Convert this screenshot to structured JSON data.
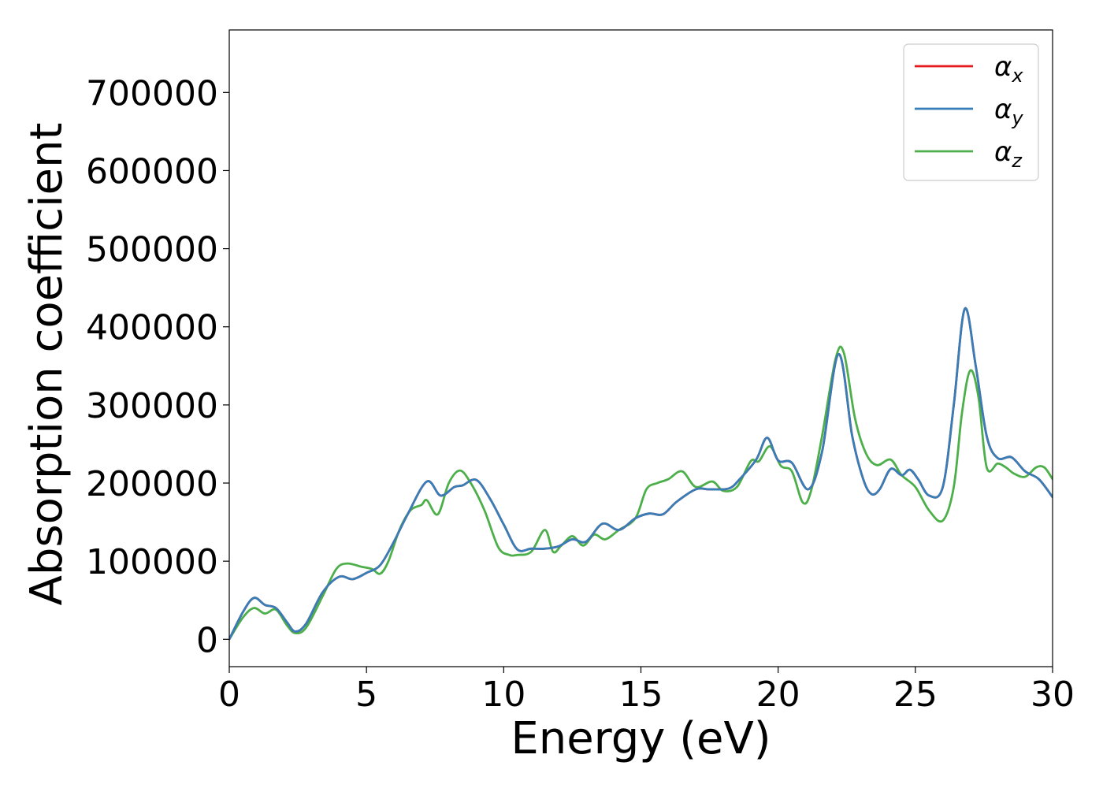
{
  "chart_data": {
    "type": "line",
    "title": "",
    "xlabel": "Energy (eV)",
    "ylabel": "Absorption coefficient",
    "xlim": [
      0,
      30
    ],
    "ylim": [
      -35000,
      780000
    ],
    "xticks": [
      0,
      5,
      10,
      15,
      20,
      25,
      30
    ],
    "yticks": [
      0,
      100000,
      200000,
      300000,
      400000,
      500000,
      600000,
      700000
    ],
    "grid": false,
    "legend_position": "top-right",
    "series": [
      {
        "name": "αx",
        "legend_base": "α",
        "legend_sub": "x",
        "color": "#e41a1c",
        "x": [
          0,
          0.5,
          0.9,
          1.3,
          1.7,
          2.1,
          2.4,
          2.8,
          3.4,
          4.0,
          4.5,
          5.0,
          5.5,
          6.0,
          6.5,
          7.2,
          7.7,
          8.2,
          8.5,
          9.0,
          9.5,
          10.0,
          10.5,
          11.0,
          11.5,
          12.0,
          12.5,
          13.0,
          13.6,
          14.2,
          14.8,
          15.3,
          15.8,
          16.3,
          17.0,
          17.5,
          18.2,
          18.6,
          19.2,
          19.6,
          20.0,
          20.5,
          21.1,
          21.6,
          22.2,
          22.7,
          23.1,
          23.4,
          23.7,
          24.1,
          24.5,
          24.8,
          25.1,
          25.5,
          26.0,
          26.4,
          26.8,
          27.2,
          27.6,
          28.0,
          28.5,
          29.0,
          29.5,
          30.0
        ],
        "y": [
          0,
          35000,
          53000,
          44000,
          40000,
          22000,
          10000,
          20000,
          60000,
          80000,
          77000,
          85000,
          95000,
          125000,
          160000,
          202000,
          184000,
          195000,
          197000,
          204000,
          180000,
          147000,
          115000,
          116000,
          116000,
          119000,
          128000,
          125000,
          148000,
          140000,
          155000,
          161000,
          160000,
          176000,
          192000,
          192000,
          193000,
          205000,
          230000,
          258000,
          229000,
          226000,
          192000,
          240000,
          365000,
          260000,
          205000,
          186000,
          192000,
          218000,
          210000,
          217000,
          205000,
          184000,
          195000,
          300000,
          423000,
          350000,
          260000,
          232000,
          233000,
          215000,
          205000,
          182000
        ]
      },
      {
        "name": "αy",
        "legend_base": "α",
        "legend_sub": "y",
        "color": "#377eb8",
        "x": [
          0,
          0.5,
          0.9,
          1.3,
          1.7,
          2.1,
          2.4,
          2.8,
          3.4,
          4.0,
          4.5,
          5.0,
          5.5,
          6.0,
          6.5,
          7.2,
          7.7,
          8.2,
          8.5,
          9.0,
          9.5,
          10.0,
          10.5,
          11.0,
          11.5,
          12.0,
          12.5,
          13.0,
          13.6,
          14.2,
          14.8,
          15.3,
          15.8,
          16.3,
          17.0,
          17.5,
          18.2,
          18.6,
          19.2,
          19.6,
          20.0,
          20.5,
          21.1,
          21.6,
          22.2,
          22.7,
          23.1,
          23.4,
          23.7,
          24.1,
          24.5,
          24.8,
          25.1,
          25.5,
          26.0,
          26.4,
          26.8,
          27.2,
          27.6,
          28.0,
          28.5,
          29.0,
          29.5,
          30.0
        ],
        "y": [
          0,
          35000,
          53000,
          44000,
          40000,
          22000,
          10000,
          20000,
          60000,
          80000,
          77000,
          85000,
          95000,
          125000,
          160000,
          202000,
          184000,
          195000,
          197000,
          204000,
          180000,
          147000,
          115000,
          116000,
          116000,
          119000,
          128000,
          125000,
          148000,
          140000,
          155000,
          161000,
          160000,
          176000,
          192000,
          192000,
          193000,
          205000,
          230000,
          258000,
          229000,
          226000,
          192000,
          240000,
          365000,
          260000,
          205000,
          186000,
          192000,
          218000,
          210000,
          217000,
          205000,
          184000,
          195000,
          300000,
          423000,
          350000,
          260000,
          232000,
          233000,
          215000,
          205000,
          182000
        ]
      },
      {
        "name": "αz",
        "legend_base": "α",
        "legend_sub": "z",
        "color": "#4daf4a",
        "x": [
          0,
          0.5,
          0.9,
          1.3,
          1.7,
          2.1,
          2.4,
          2.8,
          3.4,
          3.9,
          4.3,
          4.8,
          5.2,
          5.5,
          5.8,
          6.2,
          6.6,
          7.0,
          7.2,
          7.6,
          8.0,
          8.4,
          8.8,
          9.3,
          9.8,
          10.2,
          10.5,
          11.0,
          11.5,
          11.8,
          12.1,
          12.5,
          12.9,
          13.3,
          13.7,
          14.2,
          14.8,
          15.2,
          15.6,
          16.0,
          16.5,
          17.0,
          17.6,
          18.0,
          18.5,
          19.0,
          19.3,
          19.7,
          20.1,
          20.5,
          20.9,
          21.2,
          21.6,
          22.1,
          22.4,
          22.8,
          23.2,
          23.6,
          24.1,
          24.5,
          25.0,
          25.5,
          26.0,
          26.4,
          26.7,
          27.0,
          27.3,
          27.6,
          28.0,
          28.3,
          28.6,
          29.0,
          29.4,
          29.7,
          30.0
        ],
        "y": [
          0,
          28000,
          40000,
          33000,
          38000,
          18000,
          8000,
          15000,
          55000,
          90000,
          97000,
          93000,
          90000,
          84000,
          100000,
          140000,
          165000,
          172000,
          178000,
          160000,
          200000,
          216000,
          200000,
          165000,
          118000,
          108000,
          108000,
          112000,
          140000,
          112000,
          120000,
          132000,
          120000,
          134000,
          128000,
          140000,
          155000,
          192000,
          200000,
          205000,
          215000,
          195000,
          202000,
          190000,
          195000,
          228000,
          228000,
          247000,
          222000,
          215000,
          175000,
          190000,
          260000,
          360000,
          366000,
          283000,
          238000,
          223000,
          230000,
          210000,
          195000,
          165000,
          152000,
          195000,
          290000,
          344000,
          310000,
          220000,
          225000,
          220000,
          212000,
          208000,
          220000,
          220000,
          205000
        ]
      }
    ]
  }
}
